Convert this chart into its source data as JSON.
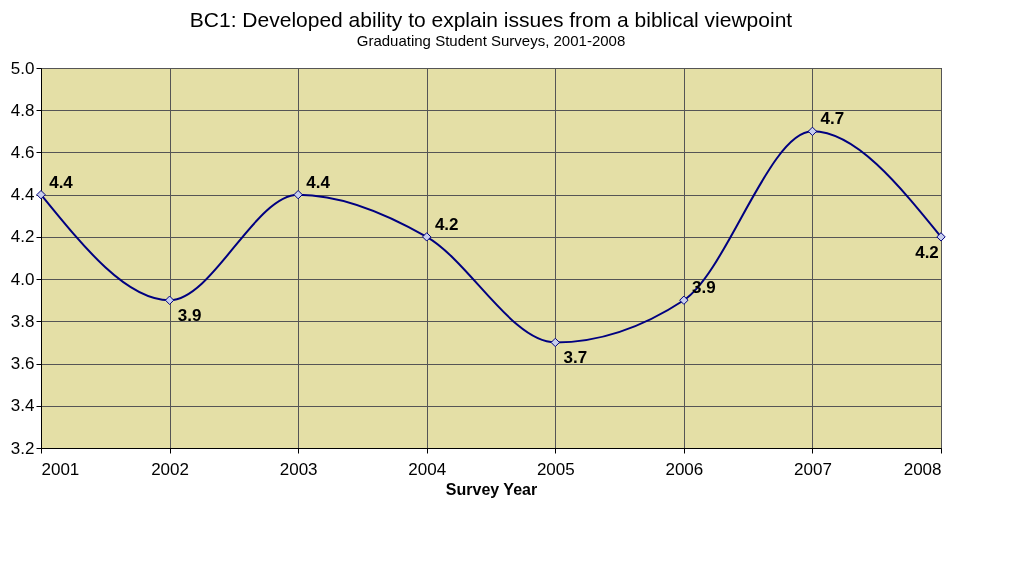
{
  "chart_data": {
    "type": "line",
    "title": "BC1: Developed ability to explain issues from a biblical viewpoint",
    "subtitle": "Graduating Student Surveys, 2001-2008",
    "xlabel": "Survey Year",
    "x": [
      2001,
      2002,
      2003,
      2004,
      2005,
      2006,
      2007,
      2008
    ],
    "series": [
      {
        "color": "#000080",
        "values": [
          4.4,
          3.9,
          4.4,
          4.2,
          3.7,
          3.9,
          4.7,
          4.2
        ]
      }
    ],
    "xlim": [
      2001,
      2008
    ],
    "xticks": [
      2001,
      2002,
      2003,
      2004,
      2005,
      2006,
      2007,
      2008
    ],
    "ylim": [
      3.2,
      5.0
    ],
    "yticks": [
      3.2,
      3.4,
      3.6,
      3.8,
      {
        "value": 4,
        "label": "4.0"
      },
      4.2,
      4.4,
      4.6,
      4.8,
      {
        "value": 5,
        "label": "5.0"
      }
    ],
    "grid": true,
    "marker": "diamond",
    "data_labels": true
  }
}
